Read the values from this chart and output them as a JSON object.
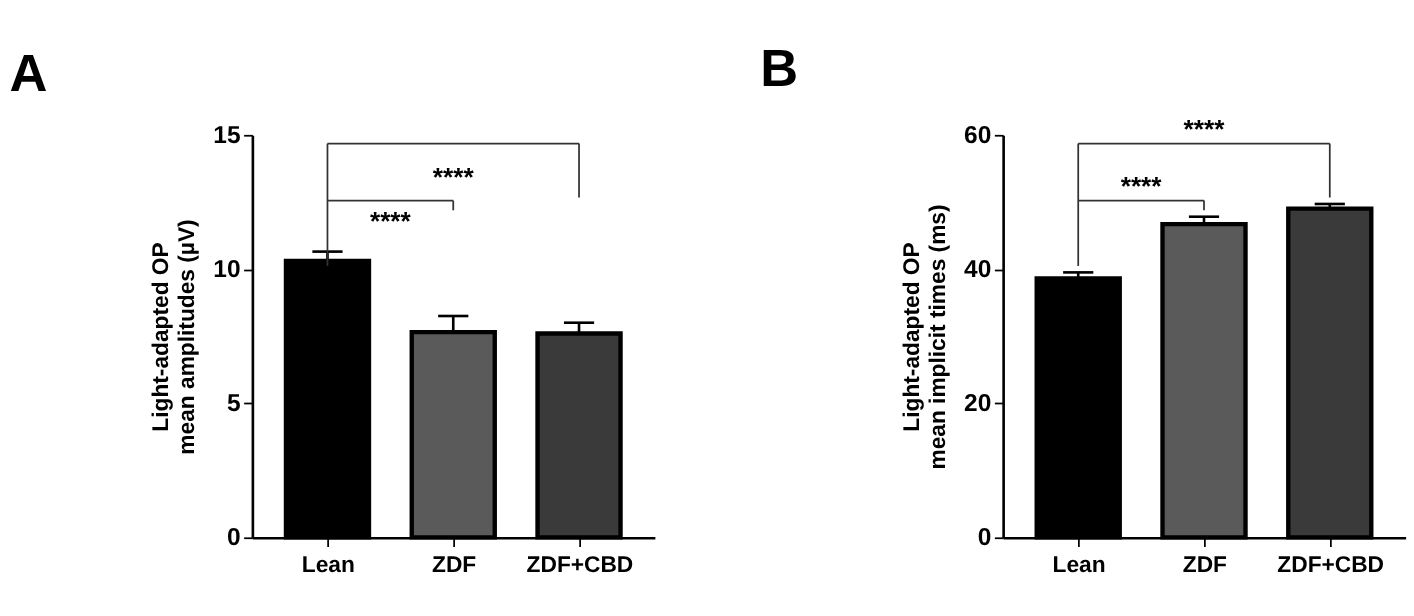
{
  "chart_data": [
    {
      "type": "bar",
      "title": "A",
      "ylabel": "Light-adapted OP\nmean amplitudes (µV)",
      "categories": [
        "Lean",
        "ZDF",
        "ZDF+CBD"
      ],
      "values": [
        10.3,
        7.65,
        7.6
      ],
      "colors": [
        "#000000",
        "#5a5a5a",
        "#3a3a3a"
      ],
      "errors": [
        [
          10.3,
          10.65
        ],
        [
          7.65,
          8.25
        ],
        [
          7.6,
          8.0
        ]
      ],
      "ylim": [
        0,
        15
      ],
      "yticks": [
        0,
        5,
        10,
        15
      ],
      "grid": false,
      "annotations": [
        "****",
        "****"
      ]
    },
    {
      "type": "bar",
      "title": "B",
      "ylabel": "Light-adapted OP\nmean implicit times (ms)",
      "categories": [
        "Lean",
        "ZDF",
        "ZDF+CBD"
      ],
      "values": [
        38.6,
        46.7,
        49.0
      ],
      "colors": [
        "#000000",
        "#5a5a5a",
        "#3a3a3a"
      ],
      "errors": [
        [
          38.6,
          39.5
        ],
        [
          46.7,
          47.8
        ],
        [
          49.0,
          49.7
        ]
      ],
      "ylim": [
        0,
        60
      ],
      "yticks": [
        0,
        20,
        40,
        60
      ],
      "grid": false,
      "annotations": [
        "****",
        "****"
      ]
    }
  ]
}
